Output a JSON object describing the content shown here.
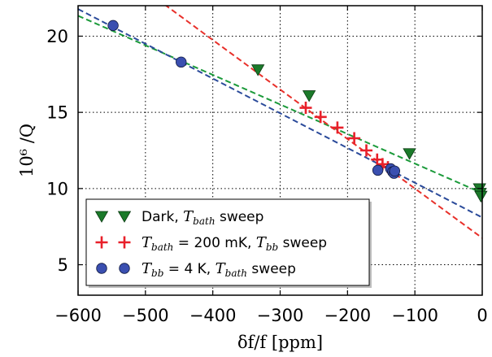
{
  "chart_data": {
    "type": "scatter",
    "xlabel": "δf/f [ppm]",
    "ylabel": "10⁶ /Q",
    "xlim": [
      -600,
      0
    ],
    "ylim": [
      3,
      22
    ],
    "xticks": [
      -600,
      -500,
      -400,
      -300,
      -200,
      -100,
      0
    ],
    "yticks": [
      5,
      10,
      15,
      20
    ],
    "xtick_labels": [
      "−600",
      "−500",
      "−400",
      "−300",
      "−200",
      "−100",
      "0"
    ],
    "ytick_labels": [
      "5",
      "10",
      "15",
      "20"
    ],
    "grid": "dotted",
    "legend_position": "lower-left",
    "series": [
      {
        "key": "dark",
        "legend": {
          "prefix": "Dark, ",
          "math_main": "T",
          "math_sub": "bath",
          "suffix": " sweep"
        },
        "marker": "triangle-down",
        "color": "#1b7a2a",
        "points": [
          {
            "x": -333,
            "y": 17.8
          },
          {
            "x": -257,
            "y": 16.1
          },
          {
            "x": -108,
            "y": 12.3
          },
          {
            "x": -4,
            "y": 10.0
          },
          {
            "x": -3,
            "y": 9.7
          },
          {
            "x": -2,
            "y": 9.5
          }
        ],
        "fit": {
          "color": "#1b9a3a",
          "slope": -0.0194,
          "intercept": 9.7
        }
      },
      {
        "key": "tbb",
        "legend": {
          "math_main": "T",
          "math_sub": "bath",
          "middle": " = 200 mK, ",
          "math_main2": "T",
          "math_sub2": "bb",
          "suffix": " sweep"
        },
        "marker": "plus",
        "color": "#e8202a",
        "points": [
          {
            "x": -262,
            "y": 15.3
          },
          {
            "x": -240,
            "y": 14.7
          },
          {
            "x": -215,
            "y": 14.0
          },
          {
            "x": -190,
            "y": 13.3
          },
          {
            "x": -172,
            "y": 12.5
          },
          {
            "x": -156,
            "y": 11.9
          },
          {
            "x": -148,
            "y": 11.6
          },
          {
            "x": -140,
            "y": 11.4
          },
          {
            "x": -133,
            "y": 11.2
          }
        ],
        "fit": {
          "color": "#e8302a",
          "slope": -0.0325,
          "intercept": 6.75
        }
      },
      {
        "key": "tbath",
        "legend": {
          "math_main": "T",
          "math_sub": "bb",
          "middle": " = 4 K, ",
          "math_main2": "T",
          "math_sub2": "bath",
          "suffix": " sweep"
        },
        "marker": "circle",
        "color": "#3a4fb0",
        "points": [
          {
            "x": -548,
            "y": 20.7
          },
          {
            "x": -447,
            "y": 18.3
          },
          {
            "x": -155,
            "y": 11.2
          },
          {
            "x": -136,
            "y": 11.3
          },
          {
            "x": -133,
            "y": 11.1
          },
          {
            "x": -131,
            "y": 11.0
          },
          {
            "x": -130,
            "y": 11.15
          }
        ],
        "fit": {
          "color": "#2a4a9a",
          "slope": -0.0228,
          "intercept": 8.1
        }
      }
    ]
  }
}
